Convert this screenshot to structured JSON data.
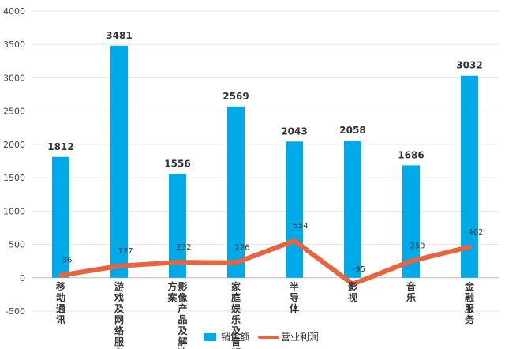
{
  "chart_data": {
    "type": "bar",
    "categories": [
      "移动通讯",
      "游戏及网络服务",
      "影像产品及解决方案",
      "家庭娱乐及音频",
      "半导体",
      "影视",
      "音乐",
      "金融服务"
    ],
    "category_lines": [
      [
        "移动通讯"
      ],
      [
        "游戏及网络服务"
      ],
      [
        "方案",
        "影像产品及解决"
      ],
      [
        "家庭娱乐及音频"
      ],
      [
        "半导体"
      ],
      [
        "影视"
      ],
      [
        "音乐"
      ],
      [
        "金融服务"
      ]
    ],
    "series": [
      {
        "name": "销售额",
        "type": "bar",
        "color": "#00a9e8",
        "values": [
          1812,
          3481,
          1556,
          2569,
          2043,
          2058,
          1686,
          3032
        ]
      },
      {
        "name": "营业利润",
        "type": "line",
        "color": "#e9643c",
        "values": [
          36,
          177,
          232,
          226,
          554,
          -95,
          250,
          462
        ]
      }
    ],
    "ylim": [
      -500,
      4000
    ],
    "yticks": [
      -500,
      0,
      500,
      1000,
      1500,
      2000,
      2500,
      3000,
      3500,
      4000
    ],
    "grid": true,
    "legend_position": "bottom-center",
    "xlabel": "",
    "ylabel": "",
    "title": ""
  }
}
